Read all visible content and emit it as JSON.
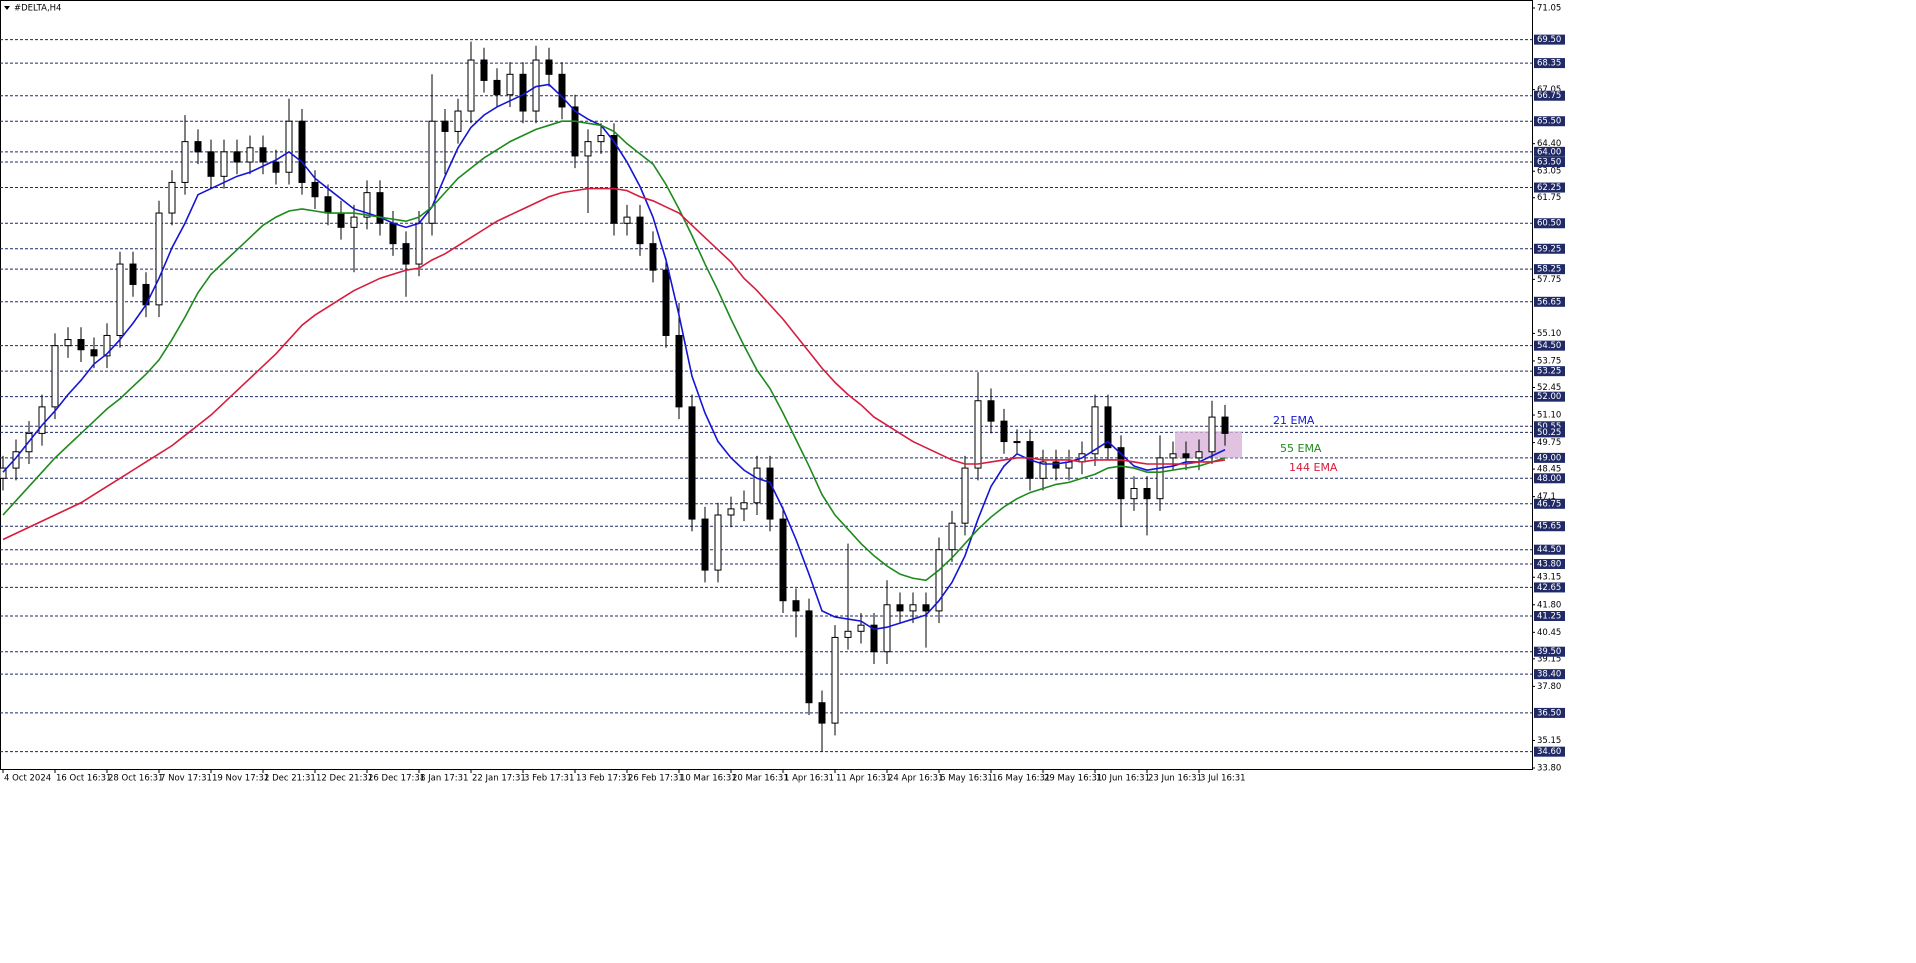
{
  "chart_data": {
    "type": "candlestick",
    "title": "#DELTA,H4",
    "categories": [
      "4 Oct 2024",
      null,
      null,
      null,
      "16 Oct 16:31",
      null,
      null,
      null,
      "28 Oct 16:31",
      null,
      null,
      null,
      "7 Nov 17:31",
      null,
      null,
      null,
      "19 Nov 17:31",
      null,
      null,
      null,
      "2 Dec 21:31",
      null,
      null,
      null,
      "12 Dec 21:31",
      null,
      null,
      null,
      "26 Dec 17:31",
      null,
      null,
      null,
      "8 Jan 17:31",
      null,
      null,
      null,
      "22 Jan 17:31",
      null,
      null,
      null,
      "3 Feb 17:31",
      null,
      null,
      null,
      "13 Feb 17:31",
      null,
      null,
      null,
      "26 Feb 17:31",
      null,
      null,
      null,
      "10 Mar 16:31",
      null,
      null,
      null,
      "20 Mar 16:31",
      null,
      null,
      null,
      "1 Apr 16:31",
      null,
      null,
      null,
      "11 Apr 16:31",
      null,
      null,
      null,
      "24 Apr 16:31",
      null,
      null,
      null,
      "6 May 16:31",
      null,
      null,
      null,
      "16 May 16:31",
      null,
      null,
      null,
      "29 May 16:31",
      null,
      null,
      null,
      "10 Jun 16:31",
      null,
      null,
      null,
      "23 Jun 16:31",
      null,
      null,
      null,
      "3 Jul 16:31",
      null,
      null
    ],
    "open": [
      48.0,
      48.5,
      49.3,
      50.2,
      51.5,
      54.5,
      54.8,
      54.3,
      54.0,
      55.0,
      58.5,
      57.5,
      56.5,
      61.0,
      62.5,
      64.5,
      64.0,
      62.8,
      64.0,
      63.5,
      64.2,
      63.5,
      63.0,
      65.5,
      62.5,
      61.8,
      61.0,
      60.3,
      60.8,
      62.0,
      60.5,
      59.5,
      58.5,
      60.5,
      65.5,
      65.0,
      66.0,
      68.5,
      67.5,
      66.8,
      67.8,
      66.0,
      68.5,
      67.8,
      66.2,
      63.8,
      64.5,
      64.8,
      60.5,
      60.8,
      59.5,
      58.2,
      55.0,
      51.5,
      46.0,
      43.5,
      46.2,
      46.5,
      46.8,
      48.5,
      46.0,
      42.0,
      41.5,
      37.0,
      36.0,
      40.2,
      40.5,
      40.8,
      39.5,
      41.8,
      41.5,
      41.8,
      41.5,
      44.5,
      45.8,
      48.5,
      51.8,
      50.8,
      49.8,
      49.8,
      48.0,
      48.8,
      48.5,
      48.8,
      49.2,
      51.5,
      49.5,
      47.0,
      47.5,
      47.0,
      49.0,
      49.2,
      49.0,
      49.3,
      51.0
    ],
    "high": [
      49.1,
      49.9,
      50.8,
      52.1,
      55.1,
      55.4,
      55.4,
      54.9,
      55.6,
      59.1,
      59.1,
      58.1,
      61.6,
      63.1,
      65.8,
      65.1,
      64.6,
      64.6,
      64.6,
      64.8,
      64.8,
      64.1,
      66.6,
      66.1,
      63.1,
      62.4,
      61.6,
      61.4,
      62.6,
      62.6,
      61.1,
      60.1,
      61.1,
      67.8,
      66.1,
      66.6,
      69.4,
      69.1,
      68.1,
      68.4,
      68.4,
      69.2,
      69.1,
      68.4,
      66.8,
      65.1,
      65.4,
      65.4,
      61.4,
      61.4,
      60.1,
      58.8,
      56.6,
      52.1,
      46.6,
      46.8,
      47.1,
      47.4,
      49.1,
      49.1,
      46.6,
      42.6,
      42.1,
      37.6,
      40.8,
      44.8,
      41.4,
      41.4,
      43.0,
      42.4,
      42.4,
      42.4,
      45.1,
      46.4,
      49.1,
      53.2,
      52.4,
      51.4,
      50.4,
      50.4,
      49.4,
      49.4,
      49.4,
      49.8,
      52.1,
      52.1,
      50.1,
      48.1,
      48.1,
      50.1,
      49.8,
      49.8,
      49.9,
      51.8,
      51.6
    ],
    "low": [
      47.4,
      47.9,
      48.7,
      49.6,
      50.9,
      53.9,
      53.7,
      53.4,
      53.4,
      54.4,
      56.9,
      55.9,
      55.9,
      60.4,
      61.9,
      63.4,
      62.2,
      62.2,
      62.9,
      62.9,
      62.9,
      62.4,
      62.4,
      61.9,
      61.2,
      60.4,
      59.7,
      58.1,
      60.2,
      59.9,
      58.9,
      56.9,
      57.9,
      59.9,
      62.9,
      64.4,
      65.4,
      66.9,
      66.2,
      66.2,
      65.4,
      65.4,
      67.2,
      65.6,
      63.2,
      61.0,
      63.9,
      59.9,
      59.9,
      58.9,
      57.6,
      54.4,
      50.9,
      45.4,
      42.9,
      42.9,
      45.6,
      45.9,
      46.2,
      45.4,
      41.4,
      40.2,
      36.4,
      34.6,
      35.4,
      39.6,
      39.9,
      38.9,
      38.9,
      40.9,
      40.9,
      39.7,
      40.9,
      43.9,
      45.2,
      47.9,
      50.2,
      49.2,
      49.2,
      47.4,
      47.4,
      47.9,
      47.9,
      48.2,
      48.6,
      48.9,
      45.6,
      46.4,
      45.2,
      46.4,
      48.4,
      48.4,
      48.4,
      48.7,
      49.6
    ],
    "close": [
      48.5,
      49.3,
      50.2,
      51.5,
      54.5,
      54.8,
      54.3,
      54.0,
      55.0,
      58.5,
      57.5,
      56.5,
      61.0,
      62.5,
      64.5,
      64.0,
      62.8,
      64.0,
      63.5,
      64.2,
      63.5,
      63.0,
      65.5,
      62.5,
      61.8,
      61.0,
      60.3,
      60.8,
      62.0,
      60.5,
      59.5,
      58.5,
      60.5,
      65.5,
      65.0,
      66.0,
      68.5,
      67.5,
      66.8,
      67.8,
      66.0,
      68.5,
      67.8,
      66.2,
      63.8,
      64.5,
      64.8,
      60.5,
      60.8,
      59.5,
      58.2,
      55.0,
      51.5,
      46.0,
      43.5,
      46.2,
      46.5,
      46.8,
      48.5,
      46.0,
      42.0,
      41.5,
      37.0,
      36.0,
      40.2,
      40.5,
      40.8,
      39.5,
      41.8,
      41.5,
      41.8,
      41.5,
      44.5,
      45.8,
      48.5,
      51.8,
      50.8,
      49.8,
      49.8,
      48.0,
      48.8,
      48.5,
      48.8,
      49.2,
      51.5,
      49.5,
      47.0,
      47.5,
      47.0,
      49.0,
      49.2,
      49.0,
      49.3,
      51.0,
      50.2
    ],
    "series": [
      {
        "name": "21 EMA",
        "color": "#1515d6",
        "values": [
          48.3,
          49.0,
          49.8,
          50.6,
          51.3,
          52.1,
          52.8,
          53.6,
          54.1,
          54.8,
          55.6,
          56.5,
          57.8,
          59.3,
          60.5,
          61.9,
          62.2,
          62.5,
          62.8,
          63.0,
          63.3,
          63.6,
          64.0,
          63.5,
          62.7,
          62.2,
          61.7,
          61.2,
          61.0,
          60.8,
          60.5,
          60.3,
          60.5,
          61.3,
          62.8,
          64.2,
          65.2,
          65.8,
          66.2,
          66.5,
          66.8,
          67.2,
          67.3,
          66.7,
          66.0,
          65.6,
          65.3,
          64.5,
          63.5,
          62.3,
          60.8,
          58.7,
          56.0,
          53.0,
          51.2,
          49.8,
          49.0,
          48.4,
          48.0,
          47.8,
          46.5,
          45.0,
          43.3,
          41.5,
          41.2,
          41.1,
          41.0,
          40.6,
          40.7,
          40.9,
          41.1,
          41.3,
          42.0,
          42.9,
          44.2,
          46.0,
          47.6,
          48.6,
          49.2,
          48.9,
          48.7,
          48.7,
          48.8,
          49.0,
          49.4,
          49.8,
          49.2,
          48.6,
          48.4,
          48.5,
          48.6,
          48.8,
          48.8,
          49.1,
          49.4
        ]
      },
      {
        "name": "55 EMA",
        "color": "#1e8a1e",
        "values": [
          46.2,
          46.9,
          47.6,
          48.3,
          49.0,
          49.6,
          50.2,
          50.8,
          51.4,
          51.9,
          52.5,
          53.1,
          53.8,
          54.8,
          55.9,
          57.1,
          58.0,
          58.6,
          59.2,
          59.8,
          60.4,
          60.8,
          61.1,
          61.2,
          61.1,
          61.0,
          61.0,
          61.0,
          60.9,
          60.8,
          60.7,
          60.6,
          60.8,
          61.3,
          62.0,
          62.7,
          63.2,
          63.7,
          64.1,
          64.5,
          64.8,
          65.1,
          65.3,
          65.5,
          65.5,
          65.4,
          65.3,
          65.0,
          64.4,
          63.9,
          63.4,
          62.4,
          61.2,
          59.9,
          58.5,
          57.2,
          55.8,
          54.5,
          53.3,
          52.4,
          51.2,
          49.9,
          48.6,
          47.2,
          46.2,
          45.5,
          44.8,
          44.2,
          43.7,
          43.3,
          43.1,
          43.0,
          43.5,
          44.1,
          44.8,
          45.5,
          46.1,
          46.6,
          47.0,
          47.3,
          47.5,
          47.7,
          47.8,
          48.0,
          48.2,
          48.5,
          48.6,
          48.5,
          48.3,
          48.3,
          48.4,
          48.5,
          48.6,
          48.8,
          49.0
        ]
      },
      {
        "name": "144 EMA",
        "color": "#d81c3c",
        "values": [
          45.0,
          45.3,
          45.6,
          45.9,
          46.2,
          46.5,
          46.8,
          47.2,
          47.6,
          48.0,
          48.4,
          48.8,
          49.2,
          49.6,
          50.1,
          50.6,
          51.1,
          51.7,
          52.3,
          52.9,
          53.5,
          54.1,
          54.8,
          55.5,
          56.0,
          56.4,
          56.8,
          57.2,
          57.5,
          57.8,
          58.0,
          58.2,
          58.3,
          58.7,
          59.0,
          59.4,
          59.8,
          60.2,
          60.6,
          60.9,
          61.2,
          61.5,
          61.8,
          62.0,
          62.1,
          62.2,
          62.2,
          62.2,
          62.1,
          61.8,
          61.6,
          61.3,
          61.0,
          60.4,
          59.8,
          59.2,
          58.6,
          57.8,
          57.2,
          56.5,
          55.8,
          55.0,
          54.2,
          53.4,
          52.7,
          52.1,
          51.6,
          51.0,
          50.6,
          50.2,
          49.8,
          49.5,
          49.2,
          48.9,
          48.7,
          48.7,
          48.8,
          48.9,
          49.0,
          49.0,
          48.9,
          48.9,
          48.9,
          48.8,
          48.9,
          48.9,
          48.9,
          48.8,
          48.7,
          48.7,
          48.7,
          48.7,
          48.8,
          48.8,
          48.9
        ]
      }
    ],
    "zone": {
      "ylim": [
        49.0,
        50.3
      ],
      "color": "#d9b3d9"
    },
    "ylim": [
      33.8,
      71.05
    ],
    "yticks": [
      71.05,
      67.05,
      {
        "value": 64.4,
        "label": "64.40"
      },
      63.05,
      61.75,
      57.75,
      {
        "value": 55.1,
        "label": "55.10"
      },
      53.75,
      52.45,
      {
        "value": 51.1,
        "label": "51.10"
      },
      49.75,
      48.45,
      47.1,
      43.15,
      {
        "value": 41.8,
        "label": "41.80"
      },
      40.45,
      39.15,
      {
        "value": 37.8,
        "label": "37.80"
      },
      35.15,
      {
        "value": 33.8,
        "label": "33.80"
      }
    ],
    "levels": [
      {
        "value": 69.5,
        "label": "69.50"
      },
      68.35,
      66.75,
      {
        "value": 65.5,
        "label": "65.50"
      },
      {
        "value": 64,
        "label": "64.00"
      },
      {
        "value": 63.5,
        "label": "63.50"
      },
      62.25,
      {
        "value": 60.5,
        "label": "60.50"
      },
      59.25,
      58.25,
      56.65,
      {
        "value": 54.5,
        "label": "54.50"
      },
      53.25,
      {
        "value": 52,
        "label": "52.00"
      },
      50.55,
      50.25,
      {
        "value": 49,
        "label": "49.00"
      },
      {
        "value": 48,
        "label": "48.00"
      },
      46.75,
      45.65,
      {
        "value": 44.5,
        "label": "44.50"
      },
      {
        "value": 43.8,
        "label": "43.80"
      },
      42.65,
      41.25,
      {
        "value": 39.5,
        "label": "39.50"
      },
      {
        "value": 38.4,
        "label": "38.40"
      },
      {
        "value": 36.5,
        "label": "36.50"
      },
      {
        "value": 34.6,
        "label": "34.60"
      }
    ],
    "level_color": "#1f2a66"
  }
}
